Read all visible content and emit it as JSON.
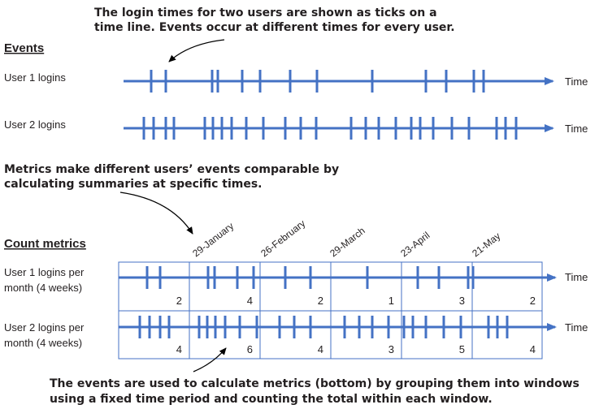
{
  "annotations": {
    "top_line1": "The login times for two users are shown as ticks on a",
    "top_line2": "time line. Events occur at different times for every user.",
    "mid_line1": "Metrics make different users’ events comparable by",
    "mid_line2": "calculating summaries at specific times.",
    "bottom_line1": "The events are used to calculate metrics (bottom) by grouping them into windows",
    "bottom_line2": "using a fixed time period and counting the total within each window."
  },
  "events_section": {
    "title": "Events",
    "user1_label": "User 1 logins",
    "user2_label": "User 2 logins",
    "axis_label": "Time"
  },
  "count_section": {
    "title": "Count metrics",
    "user1_label_line1": "User 1 logins per",
    "user1_label_line2": "month (4 weeks)",
    "user2_label_line1": "User 2 logins per",
    "user2_label_line2": "month (4 weeks)",
    "axis_label": "Time",
    "dates": [
      "29-January",
      "26-February",
      "29-March",
      "23-April",
      "21-May"
    ],
    "user1_counts": [
      2,
      4,
      2,
      1,
      3,
      2
    ],
    "user2_counts": [
      4,
      6,
      4,
      3,
      5,
      4
    ]
  },
  "colors": {
    "line": "#4472C4",
    "box": "#4472C4",
    "text": "#231f20"
  }
}
